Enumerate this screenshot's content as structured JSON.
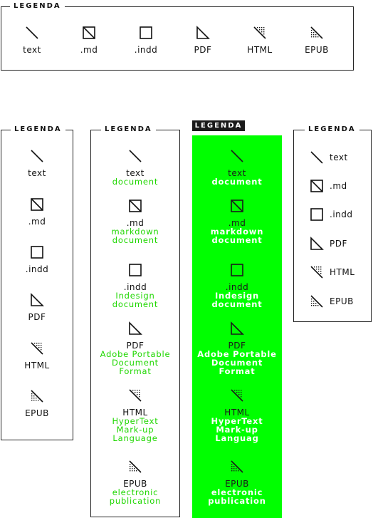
{
  "legend_title": "LEGENDA",
  "items": [
    {
      "label": "text",
      "icon": "line-icon",
      "desc": [
        "document"
      ]
    },
    {
      "label": ".md",
      "icon": "crossed-box-icon",
      "desc": [
        "markdown",
        "document"
      ]
    },
    {
      "label": ".indd",
      "icon": "box-icon",
      "desc": [
        "Indesign",
        "document"
      ]
    },
    {
      "label": "PDF",
      "icon": "triangle-icon",
      "desc": [
        "Adobe Portable",
        "Document",
        "Format"
      ]
    },
    {
      "label": "HTML",
      "icon": "dotted-triangle-icon",
      "desc": [
        "HyperText",
        "Mark-up",
        "Language"
      ]
    },
    {
      "label": "EPUB",
      "icon": "dotted-ramp-icon",
      "desc": [
        "electronic",
        "publication"
      ]
    }
  ],
  "green_html_desc": [
    "HyperText",
    "Mark-up",
    "Languag"
  ],
  "colors": {
    "accent": "#00ff00",
    "desc_green": "#1fd700",
    "border": "#222222",
    "title_bg": "#1a1a1a"
  }
}
